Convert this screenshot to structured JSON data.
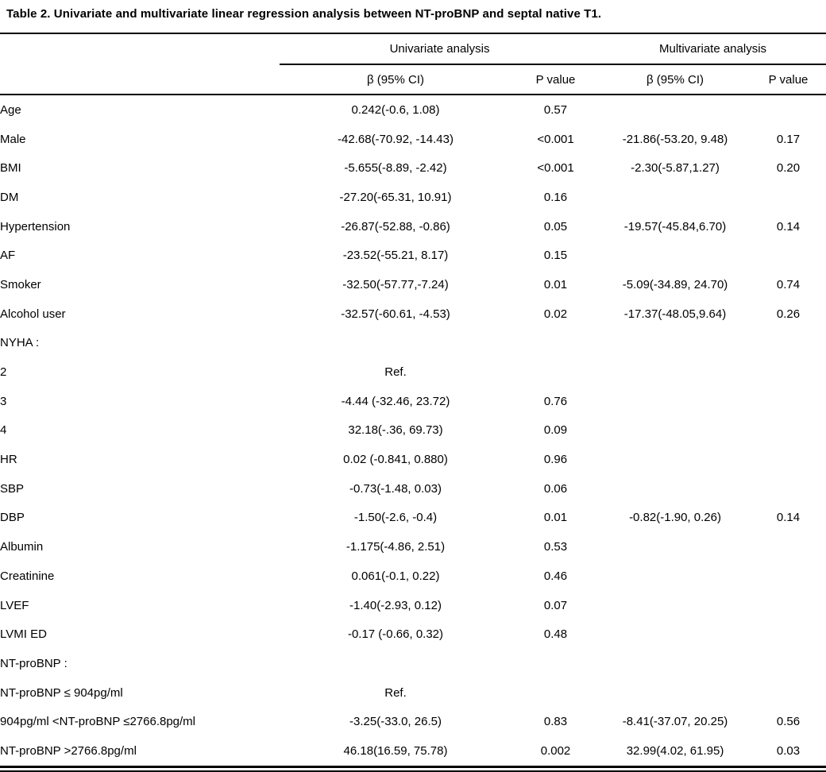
{
  "title": "Table 2. Univariate and multivariate linear regression analysis between NT-proBNP and septal native T1.",
  "table": {
    "group_headers": {
      "univariate": "Univariate analysis",
      "multivariate": "Multivariate analysis"
    },
    "column_headers": {
      "uni_beta": "β (95% CI)",
      "uni_p": "P value",
      "multi_beta": "β (95% CI)",
      "multi_p": "P value"
    },
    "rows": [
      {
        "label": "Age",
        "indent": 0,
        "uni_beta": "0.242(-0.6, 1.08)",
        "uni_p": "0.57",
        "multi_beta": "",
        "multi_p": ""
      },
      {
        "label": "Male",
        "indent": 0,
        "uni_beta": "-42.68(-70.92, -14.43)",
        "uni_p": "<0.001",
        "multi_beta": "-21.86(-53.20, 9.48)",
        "multi_p": "0.17"
      },
      {
        "label": "BMI",
        "indent": 0,
        "uni_beta": "-5.655(-8.89, -2.42)",
        "uni_p": "<0.001",
        "multi_beta": "-2.30(-5.87,1.27)",
        "multi_p": "0.20"
      },
      {
        "label": "DM",
        "indent": 0,
        "uni_beta": "-27.20(-65.31, 10.91)",
        "uni_p": "0.16",
        "multi_beta": "",
        "multi_p": ""
      },
      {
        "label": "Hypertension",
        "indent": 0,
        "uni_beta": "-26.87(-52.88, -0.86)",
        "uni_p": "0.05",
        "multi_beta": "-19.57(-45.84,6.70)",
        "multi_p": "0.14"
      },
      {
        "label": "AF",
        "indent": 0,
        "uni_beta": "-23.52(-55.21, 8.17)",
        "uni_p": "0.15",
        "multi_beta": "",
        "multi_p": ""
      },
      {
        "label": "Smoker",
        "indent": 0,
        "uni_beta": "-32.50(-57.77,-7.24)",
        "uni_p": "0.01",
        "multi_beta": "-5.09(-34.89, 24.70)",
        "multi_p": "0.74"
      },
      {
        "label": "Alcohol user",
        "indent": 0,
        "uni_beta": "-32.57(-60.61, -4.53)",
        "uni_p": "0.02",
        "multi_beta": "-17.37(-48.05,9.64)",
        "multi_p": "0.26"
      },
      {
        "label": "NYHA :",
        "indent": 0,
        "uni_beta": "",
        "uni_p": "",
        "multi_beta": "",
        "multi_p": ""
      },
      {
        "label": "2",
        "indent": 2,
        "uni_beta": "Ref.",
        "uni_p": "",
        "multi_beta": "",
        "multi_p": ""
      },
      {
        "label": "3",
        "indent": 2,
        "uni_beta": "-4.44 (-32.46, 23.72)",
        "uni_p": "0.76",
        "multi_beta": "",
        "multi_p": ""
      },
      {
        "label": "4",
        "indent": 2,
        "uni_beta": "32.18(-.36, 69.73)",
        "uni_p": "0.09",
        "multi_beta": "",
        "multi_p": ""
      },
      {
        "label": "HR",
        "indent": 0,
        "uni_beta": "0.02 (-0.841, 0.880)",
        "uni_p": "0.96",
        "multi_beta": "",
        "multi_p": ""
      },
      {
        "label": "SBP",
        "indent": 0,
        "uni_beta": "-0.73(-1.48, 0.03)",
        "uni_p": "0.06",
        "multi_beta": "",
        "multi_p": ""
      },
      {
        "label": "DBP",
        "indent": 0,
        "uni_beta": "-1.50(-2.6, -0.4)",
        "uni_p": "0.01",
        "multi_beta": "-0.82(-1.90, 0.26)",
        "multi_p": "0.14"
      },
      {
        "label": "Albumin",
        "indent": 0,
        "uni_beta": "-1.175(-4.86, 2.51)",
        "uni_p": "0.53",
        "multi_beta": "",
        "multi_p": ""
      },
      {
        "label": "Creatinine",
        "indent": 0,
        "uni_beta": "0.061(-0.1, 0.22)",
        "uni_p": "0.46",
        "multi_beta": "",
        "multi_p": ""
      },
      {
        "label": "LVEF",
        "indent": 0,
        "uni_beta": "-1.40(-2.93, 0.12)",
        "uni_p": "0.07",
        "multi_beta": "",
        "multi_p": ""
      },
      {
        "label": "LVMI ED",
        "indent": 0,
        "uni_beta": "-0.17 (-0.66, 0.32)",
        "uni_p": "0.48",
        "multi_beta": "",
        "multi_p": ""
      },
      {
        "label": "NT-proBNP :",
        "indent": 0,
        "uni_beta": "",
        "uni_p": "",
        "multi_beta": "",
        "multi_p": ""
      },
      {
        "label": "NT-proBNP ≤ 904pg/ml",
        "indent": 1,
        "uni_beta": "Ref.",
        "uni_p": "",
        "multi_beta": "",
        "multi_p": ""
      },
      {
        "label": "904pg/ml <NT-proBNP ≤2766.8pg/ml",
        "indent": 1,
        "uni_beta": "-3.25(-33.0, 26.5)",
        "uni_p": "0.83",
        "multi_beta": "-8.41(-37.07, 20.25)",
        "multi_p": "0.56"
      },
      {
        "label": "NT-proBNP >2766.8pg/ml",
        "indent": 1,
        "uni_beta": "46.18(16.59, 75.78)",
        "uni_p": "0.002",
        "multi_beta": "32.99(4.02, 61.95)",
        "multi_p": "0.03"
      }
    ]
  },
  "colors": {
    "text": "#000000",
    "rules": "#000000",
    "background": "#ffffff"
  }
}
